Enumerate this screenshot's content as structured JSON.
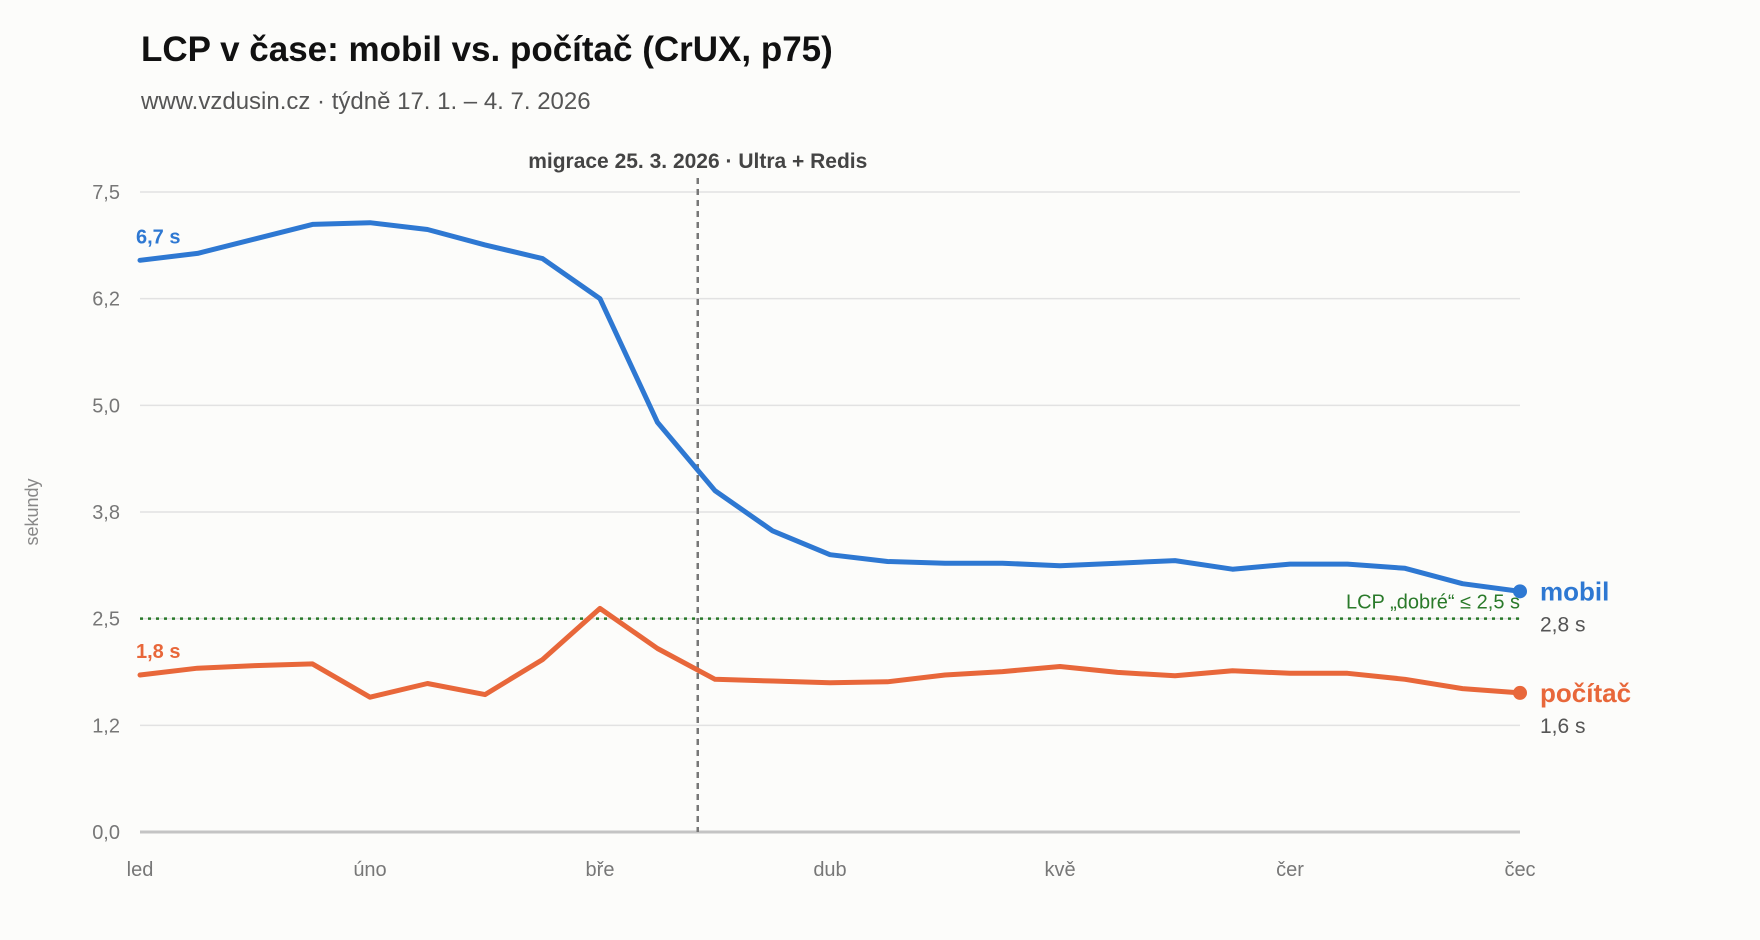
{
  "chart_data": {
    "type": "line",
    "title": "LCP v čase: mobil vs. počítač (CrUX, p75)",
    "subtitle": "www.vzdusin.cz · týdně 17. 1. – 4. 7. 2026",
    "ylabel": "sekundy",
    "xlabel": "",
    "ylim": [
      0,
      7.5
    ],
    "y_ticks": [
      {
        "value": 0,
        "label": "0,0"
      },
      {
        "value": 1.25,
        "label": "1,2"
      },
      {
        "value": 2.5,
        "label": "2,5"
      },
      {
        "value": 3.75,
        "label": "3,8"
      },
      {
        "value": 5.0,
        "label": "5,0"
      },
      {
        "value": 6.25,
        "label": "6,2"
      },
      {
        "value": 7.5,
        "label": "7,5"
      }
    ],
    "x_ticks": [
      {
        "week": 0,
        "label": "led"
      },
      {
        "week": 4,
        "label": "úno"
      },
      {
        "week": 8,
        "label": "bře"
      },
      {
        "week": 12,
        "label": "dub"
      },
      {
        "week": 16,
        "label": "kvě"
      },
      {
        "week": 20,
        "label": "čer"
      },
      {
        "week": 24,
        "label": "čec"
      }
    ],
    "x": [
      "17. 1.",
      "24. 1.",
      "31. 1.",
      "7. 2.",
      "14. 2.",
      "21. 2.",
      "28. 2.",
      "7. 3.",
      "14. 3.",
      "21. 3.",
      "28. 3.",
      "4. 4.",
      "11. 4.",
      "18. 4.",
      "25. 4.",
      "2. 5.",
      "9. 5.",
      "16. 5.",
      "23. 5.",
      "30. 5.",
      "6. 6.",
      "13. 6.",
      "20. 6.",
      "27. 6.",
      "4. 7."
    ],
    "series": [
      {
        "name": "mobil",
        "color": "#2e78d2",
        "values": [
          6.7,
          6.78,
          6.95,
          7.12,
          7.14,
          7.06,
          6.88,
          6.72,
          6.25,
          4.8,
          4.0,
          3.53,
          3.25,
          3.17,
          3.15,
          3.15,
          3.12,
          3.15,
          3.18,
          3.08,
          3.14,
          3.14,
          3.09,
          2.91,
          2.82
        ],
        "start_label": "6,7 s",
        "end_value_label": "2,8 s"
      },
      {
        "name": "počítač",
        "color": "#e8673a",
        "values": [
          1.84,
          1.92,
          1.95,
          1.97,
          1.58,
          1.74,
          1.61,
          2.02,
          2.62,
          2.15,
          1.79,
          1.77,
          1.75,
          1.76,
          1.84,
          1.88,
          1.94,
          1.87,
          1.83,
          1.89,
          1.86,
          1.86,
          1.79,
          1.68,
          1.63
        ],
        "start_label": "1,8 s",
        "end_value_label": "1,6 s"
      }
    ],
    "annotations": [
      {
        "type": "vline",
        "week": 9.7,
        "label": "migrace 25. 3. 2026 · Ultra + Redis",
        "color": "#777777"
      },
      {
        "type": "hline",
        "value": 2.5,
        "label": "LCP „dobré“ ≤ 2,5 s",
        "color": "#2a7a2a"
      }
    ],
    "grid": true,
    "legend": "direct labels at line ends"
  }
}
